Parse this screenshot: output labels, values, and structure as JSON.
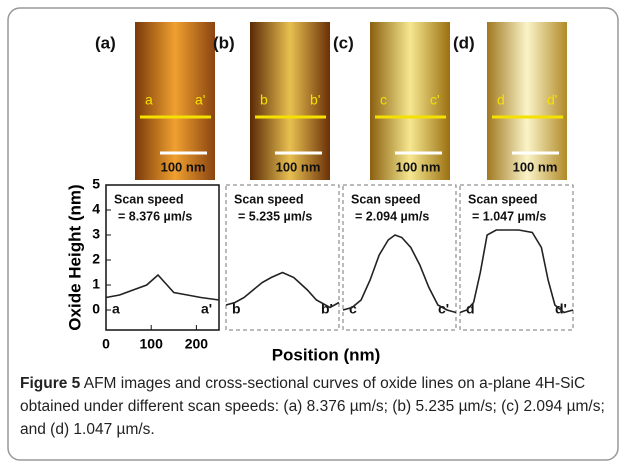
{
  "figure": {
    "panels": [
      {
        "label": "(a)",
        "markers": [
          "a",
          "a'"
        ],
        "scale_bar": "100 nm"
      },
      {
        "label": "(b)",
        "markers": [
          "b",
          "b'"
        ],
        "scale_bar": "100 nm"
      },
      {
        "label": "(c)",
        "markers": [
          "c",
          "c'"
        ],
        "scale_bar": "100 nm"
      },
      {
        "label": "(d)",
        "markers": [
          "d",
          "d'"
        ],
        "scale_bar": "100 nm"
      }
    ],
    "caption": {
      "label": "Figure 5",
      "text": "AFM images and cross-sectional curves of oxide lines on a-plane 4H-SiC obtained under different scan speeds: (a) 8.376 µm/s; (b) 5.235 µm/s; (c) 2.094 µm/s; and (d) 1.047 µm/s."
    }
  },
  "chart_data": [
    {
      "type": "line",
      "xlabel": "Position (nm)",
      "ylabel": "Oxide Height (nm)",
      "annotations": [
        "Scan speed",
        "= 8.376 µm/s",
        "a",
        "a'"
      ],
      "x": [
        0,
        30,
        60,
        90,
        115,
        130,
        150,
        180,
        210,
        250
      ],
      "values": [
        0.5,
        0.6,
        0.8,
        1.0,
        1.4,
        1.1,
        0.7,
        0.6,
        0.5,
        0.4
      ],
      "color": "#222222",
      "xlim": [
        0,
        250
      ],
      "ylim": [
        -0.8,
        5
      ],
      "xticks": [
        0,
        100,
        200
      ],
      "yticks": [
        0,
        1,
        2,
        3,
        4,
        5
      ]
    },
    {
      "type": "line",
      "annotations": [
        "Scan speed",
        "= 5.235 µm/s",
        "b",
        "b'"
      ],
      "x": [
        0,
        20,
        40,
        60,
        80,
        100,
        125,
        150,
        180,
        200,
        230,
        250
      ],
      "values": [
        0.2,
        0.3,
        0.5,
        0.8,
        1.1,
        1.3,
        1.5,
        1.3,
        0.8,
        0.4,
        0.1,
        0.3
      ],
      "color": "#222222",
      "xlim": [
        0,
        250
      ],
      "ylim": [
        -0.8,
        5
      ]
    },
    {
      "type": "line",
      "annotations": [
        "Scan speed",
        "= 2.094 µm/s",
        "c",
        "c'"
      ],
      "x": [
        0,
        20,
        40,
        60,
        80,
        100,
        115,
        130,
        150,
        170,
        190,
        210,
        230,
        250
      ],
      "values": [
        0,
        0.1,
        0.4,
        1.2,
        2.2,
        2.8,
        3.0,
        2.9,
        2.5,
        1.8,
        0.9,
        0.2,
        0,
        -0.1
      ],
      "color": "#222222",
      "xlim": [
        0,
        250
      ],
      "ylim": [
        -0.8,
        5
      ]
    },
    {
      "type": "line",
      "annotations": [
        "Scan speed",
        "= 1.047 µm/s",
        "d",
        "d'"
      ],
      "x": [
        0,
        15,
        30,
        45,
        60,
        80,
        100,
        130,
        160,
        180,
        195,
        210,
        230,
        250
      ],
      "values": [
        -0.1,
        0,
        0.3,
        1.5,
        3.0,
        3.2,
        3.2,
        3.2,
        3.1,
        2.5,
        1.2,
        0.2,
        -0.1,
        0
      ],
      "color": "#222222",
      "xlim": [
        0,
        250
      ],
      "ylim": [
        -0.8,
        5
      ]
    }
  ]
}
